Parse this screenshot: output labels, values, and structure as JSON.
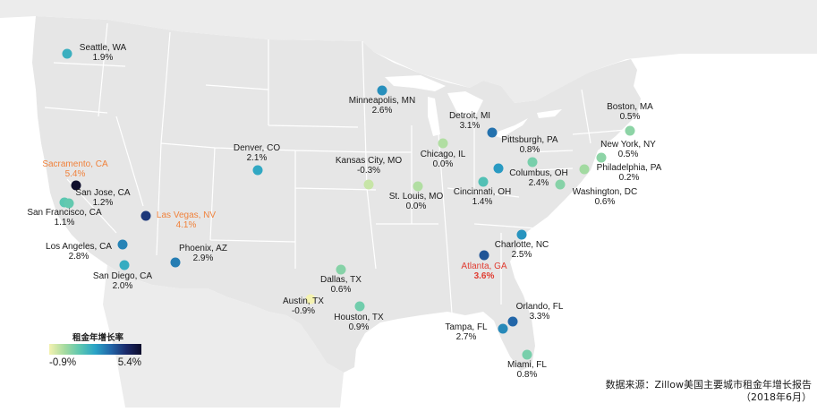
{
  "map": {
    "title": "",
    "region": "United States",
    "colors": {
      "land": "#e6e6e6",
      "ocean": "#ffffff",
      "state_border": "#ffffff",
      "water": "#ffffff",
      "highlight_orange": "#f0823c",
      "highlight_red": "#e03c31"
    },
    "cities": [
      {
        "name": "Seattle, WA",
        "value": "1.9%",
        "rate": 1.9
      },
      {
        "name": "Minneapolis, MN",
        "value": "2.6%",
        "rate": 2.6
      },
      {
        "name": "Detroit, MI",
        "value": "3.1%",
        "rate": 3.1
      },
      {
        "name": "Boston, MA",
        "value": "0.5%",
        "rate": 0.5
      },
      {
        "name": "Chicago, IL",
        "value": "0.0%",
        "rate": 0.0
      },
      {
        "name": "Pittsburgh, PA",
        "value": "0.8%",
        "rate": 0.8
      },
      {
        "name": "New York, NY",
        "value": "0.5%",
        "rate": 0.5
      },
      {
        "name": "Denver, CO",
        "value": "2.1%",
        "rate": 2.1
      },
      {
        "name": "Kansas City, MO",
        "value": "-0.3%",
        "rate": -0.3
      },
      {
        "name": "Columbus, OH",
        "value": "2.4%",
        "rate": 2.4
      },
      {
        "name": "Philadelphia, PA",
        "value": "0.2%",
        "rate": 0.2
      },
      {
        "name": "Sacramento, CA",
        "value": "5.4%",
        "rate": 5.4,
        "highlight": "orange"
      },
      {
        "name": "St. Louis, MO",
        "value": "0.0%",
        "rate": 0.0
      },
      {
        "name": "Cincinnati, OH",
        "value": "1.4%",
        "rate": 1.4
      },
      {
        "name": "Washington, DC",
        "value": "0.6%",
        "rate": 0.6
      },
      {
        "name": "San Jose, CA",
        "value": "1.2%",
        "rate": 1.2
      },
      {
        "name": "San Francisco, CA",
        "value": "1.1%",
        "rate": 1.1
      },
      {
        "name": "Las Vegas, NV",
        "value": "4.1%",
        "rate": 4.1,
        "highlight": "orange"
      },
      {
        "name": "Charlotte, NC",
        "value": "2.5%",
        "rate": 2.5
      },
      {
        "name": "Los Angeles, CA",
        "value": "2.8%",
        "rate": 2.8
      },
      {
        "name": "Phoenix, AZ",
        "value": "2.9%",
        "rate": 2.9
      },
      {
        "name": "Atlanta, GA",
        "value": "3.6%",
        "rate": 3.6,
        "highlight": "red"
      },
      {
        "name": "San Diego, CA",
        "value": "2.0%",
        "rate": 2.0
      },
      {
        "name": "Dallas, TX",
        "value": "0.6%",
        "rate": 0.6
      },
      {
        "name": "Austin, TX",
        "value": "-0.9%",
        "rate": -0.9
      },
      {
        "name": "Orlando, FL",
        "value": "3.3%",
        "rate": 3.3
      },
      {
        "name": "Houston, TX",
        "value": "0.9%",
        "rate": 0.9
      },
      {
        "name": "Tampa, FL",
        "value": "2.7%",
        "rate": 2.7
      },
      {
        "name": "Miami, FL",
        "value": "0.8%",
        "rate": 0.8
      }
    ]
  },
  "legend": {
    "title": "租金年增长率",
    "min_label": "-0.9%",
    "max_label": "5.4%",
    "min": -0.9,
    "max": 5.4,
    "gradient": [
      "#f4f2b0",
      "#a6dba0",
      "#5cc7b1",
      "#2aa3c6",
      "#2266a8",
      "#1b2a6b",
      "#0d0d2b"
    ]
  },
  "source": {
    "line1": "数据来源：Zillow美国主要城市租金年增长报告",
    "line2": "（2018年6月）"
  }
}
